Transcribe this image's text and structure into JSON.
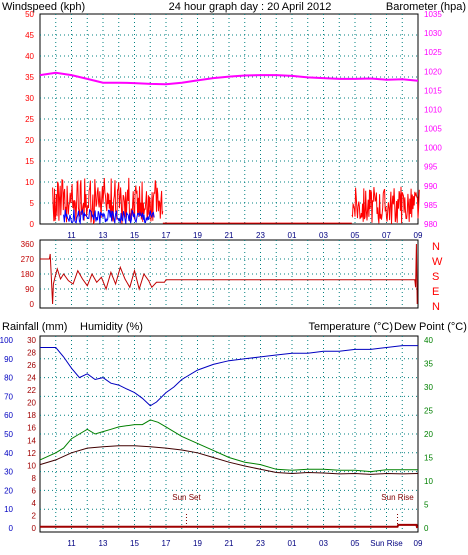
{
  "header": {
    "left_title": "Windspeed (kph)",
    "center_title": "24 hour graph day : 20 April 2012",
    "right_title": "Barometer (hpa)"
  },
  "colors": {
    "windspeed": "#ff0000",
    "gust": "#0000ff",
    "barometer": "#ff00ff",
    "direction": "#c00000",
    "temperature": "#008000",
    "dewpoint": "#400000",
    "humidity": "#0000c0",
    "rainfall": "#a00000",
    "grid": "#008080"
  },
  "chart_data": [
    {
      "type": "line",
      "name": "wind-barometer",
      "left_axis": {
        "label": "Windspeed (kph)",
        "ticks": [
          "0",
          "5",
          "10",
          "15",
          "20",
          "25",
          "30",
          "35",
          "40",
          "45",
          "50"
        ],
        "min": 0,
        "max": 50
      },
      "right_axis": {
        "label": "Barometer (hpa)",
        "ticks": [
          "980",
          "985",
          "990",
          "995",
          "1000",
          "1005",
          "1010",
          "1015",
          "1020",
          "1025",
          "1030",
          "1035"
        ],
        "min": 980,
        "max": 1035
      },
      "x_ticks": [
        "11",
        "13",
        "15",
        "17",
        "19",
        "21",
        "23",
        "01",
        "03",
        "05",
        "07",
        "09"
      ],
      "grid": true,
      "barometer": {
        "x": [
          9,
          10,
          11,
          12,
          13,
          14,
          15,
          16,
          17,
          18,
          19,
          20,
          21,
          22,
          23,
          24,
          25,
          26,
          27,
          28,
          29,
          30,
          31,
          32,
          33
        ],
        "y": [
          1019,
          1019.6,
          1019,
          1018,
          1017,
          1017,
          1016.9,
          1016.7,
          1016.6,
          1017,
          1017.6,
          1018.2,
          1018.6,
          1018.9,
          1019,
          1019,
          1018.8,
          1018.4,
          1018.2,
          1018,
          1018,
          1018.1,
          1017.8,
          1017.9,
          1017.5
        ]
      },
      "windspeed_segments": [
        {
          "start": 9.8,
          "end": 16.8,
          "min": 0,
          "max": 11
        },
        {
          "start": 28.8,
          "end": 33.1,
          "min": 0,
          "max": 9
        }
      ],
      "gust_segments": [
        {
          "start": 10.5,
          "end": 16.3,
          "min": 0,
          "max": 3.5
        }
      ]
    },
    {
      "type": "line",
      "name": "wind-direction",
      "left_axis": {
        "ticks": [
          "0",
          "90",
          "180",
          "270",
          "360"
        ],
        "min": 0,
        "max": 360
      },
      "right_labels": [
        "N",
        "W",
        "S",
        "E",
        "N"
      ],
      "grid": true,
      "direction": {
        "x": [
          9,
          9.6,
          9.65,
          9.8,
          9.85,
          10.0,
          10.1,
          10.3,
          10.5,
          10.8,
          11.1,
          11.4,
          11.7,
          12.0,
          12.3,
          12.6,
          12.9,
          13.2,
          13.5,
          13.8,
          14.1,
          14.4,
          14.7,
          15.0,
          15.3,
          15.6,
          15.9,
          16.1,
          16.4,
          16.9,
          17.0,
          17.1,
          32.8,
          32.85,
          32.9,
          32.95
        ],
        "y": [
          270,
          270,
          300,
          0,
          120,
          180,
          210,
          150,
          180,
          140,
          120,
          200,
          150,
          110,
          180,
          130,
          160,
          90,
          190,
          120,
          220,
          150,
          100,
          200,
          90,
          180,
          140,
          100,
          130,
          130,
          145,
          145,
          145,
          100,
          360,
          0
        ]
      }
    },
    {
      "type": "line",
      "name": "temperature-humidity-rain",
      "axis_labels": {
        "rainfall": "Rainfall (mm)",
        "humidity": "Humidity (%)",
        "temperature": "Temperature (°C)",
        "dewpoint": "Dew Point (°C)"
      },
      "humidity_axis": {
        "ticks": [
          "0",
          "10",
          "20",
          "30",
          "40",
          "50",
          "60",
          "70",
          "80",
          "90",
          "100"
        ],
        "min": 0,
        "max": 100
      },
      "rainfall_axis": {
        "ticks": [
          "0",
          "2",
          "4",
          "6",
          "8",
          "10",
          "12",
          "14",
          "16",
          "18",
          "20",
          "22",
          "24",
          "26",
          "28",
          "30"
        ],
        "min": 0,
        "max": 30
      },
      "temperature_axis": {
        "ticks": [
          "0",
          "5",
          "10",
          "15",
          "20",
          "25",
          "30",
          "35",
          "40"
        ],
        "min": 0,
        "max": 40
      },
      "x_ticks": [
        "11",
        "13",
        "15",
        "17",
        "19",
        "21",
        "23",
        "01",
        "03",
        "05",
        "Sun Rise",
        "09"
      ],
      "annotations": [
        {
          "text": "Sun Set",
          "x": 18.3
        },
        {
          "text": "Sun Rise",
          "x": 31.7
        }
      ],
      "grid": true,
      "humidity": {
        "x": [
          9,
          10,
          10.5,
          11,
          11.5,
          12,
          12.5,
          13,
          13.5,
          14,
          14.5,
          15,
          15.5,
          16,
          16.4,
          17,
          17.5,
          18,
          19,
          20,
          21,
          22,
          23,
          24,
          25,
          26,
          27,
          28,
          29,
          30,
          31,
          32,
          33
        ],
        "y": [
          96,
          96,
          91,
          85,
          80,
          82,
          79,
          80,
          77,
          76,
          74,
          72,
          69,
          65,
          67,
          72,
          75,
          79,
          84,
          87,
          89,
          90,
          91,
          92,
          93,
          93,
          94,
          94,
          95,
          95,
          96,
          97,
          97
        ]
      },
      "temperature": {
        "x": [
          9,
          10,
          10.5,
          11,
          11.5,
          12,
          12.5,
          13,
          13.5,
          14,
          15,
          15.5,
          16,
          16.5,
          17,
          18,
          19,
          20,
          21,
          22,
          23,
          24,
          25,
          26,
          27,
          28,
          29,
          30,
          31,
          32,
          33
        ],
        "y": [
          14.5,
          16,
          17,
          19,
          20,
          21,
          20,
          20.5,
          21,
          21.5,
          22,
          22,
          23,
          22.5,
          21.5,
          19.5,
          18,
          16.5,
          15,
          14,
          13.5,
          12.5,
          12.3,
          12.5,
          12.5,
          12.3,
          12.3,
          12.0,
          12.4,
          12.4,
          12.4
        ]
      },
      "dewpoint": {
        "x": [
          9,
          10,
          11,
          12,
          13,
          14,
          15,
          16,
          17,
          18,
          19,
          20,
          21,
          22,
          23,
          24,
          25,
          26,
          27,
          28,
          29,
          30,
          31,
          32,
          33
        ],
        "y": [
          13.5,
          14.5,
          16,
          17,
          17.3,
          17.5,
          17.5,
          17.3,
          17,
          16.6,
          16,
          15,
          14,
          13.2,
          12.5,
          11.8,
          11.6,
          11.8,
          11.7,
          11.5,
          11.6,
          11.4,
          11.6,
          11.5,
          11.6
        ]
      },
      "rainfall": {
        "x": [
          9,
          31.7,
          31.75,
          32.9,
          32.95
        ],
        "y": [
          0.2,
          0.2,
          0.5,
          0.5,
          0
        ]
      }
    }
  ]
}
